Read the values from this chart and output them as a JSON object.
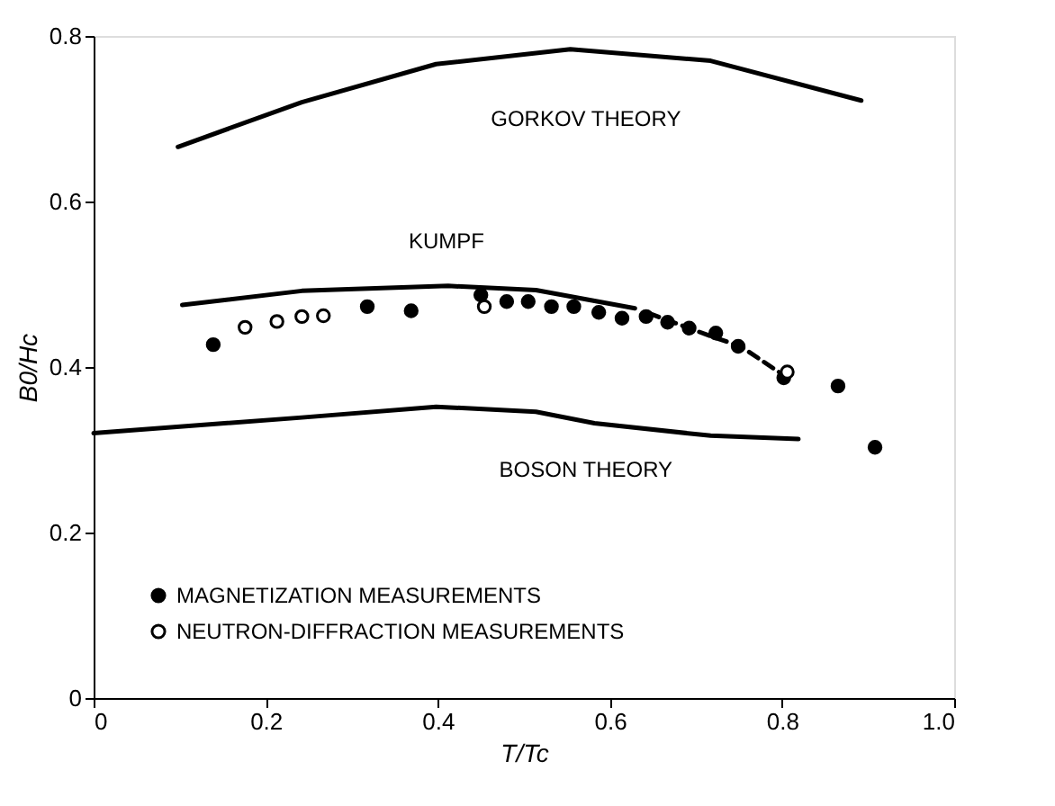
{
  "chart_data": {
    "type": "scatter",
    "xlabel": "T/Tc",
    "ylabel": "B0/Hc",
    "xlim": [
      0,
      1
    ],
    "ylim": [
      0,
      0.8
    ],
    "xticks": [
      0,
      0.2,
      0.4,
      0.6,
      0.8,
      {
        "value": 1,
        "label": "1.0"
      }
    ],
    "yticks": [
      0,
      0.2,
      0.4,
      0.6,
      0.8
    ],
    "grid": false,
    "legend": "bottom left",
    "series": [
      {
        "type": "line",
        "color": "#000000",
        "line_style": "solid",
        "x": [
          0.098,
          0.242,
          0.398,
          0.554,
          0.717,
          0.892
        ],
        "values": [
          0.666,
          0.72,
          0.766,
          0.784,
          0.77,
          0.722
        ]
      },
      {
        "type": "line",
        "color": "#000000",
        "line_style": "solid",
        "x": [
          0.103,
          0.242,
          0.412,
          0.514,
          0.629
        ],
        "values": [
          0.475,
          0.492,
          0.498,
          0.493,
          0.471
        ]
      },
      {
        "type": "line",
        "color": "#000000",
        "line_style": "dashed",
        "x": [
          0.645,
          0.718,
          0.752,
          0.799
        ],
        "values": [
          0.465,
          0.437,
          0.425,
          0.392
        ]
      },
      {
        "type": "line",
        "color": "#000000",
        "line_style": "solid",
        "x": [
          0,
          0.242,
          0.398,
          0.514,
          0.582,
          0.717,
          0.819
        ],
        "values": [
          0.32,
          0.339,
          0.352,
          0.346,
          0.332,
          0.317,
          0.313
        ]
      },
      {
        "name": "MAGNETIZATION MEASUREMENTS",
        "color": "#000000",
        "marker": "circle",
        "x": [
          0.139,
          0.318,
          0.369,
          0.45,
          0.48,
          0.505,
          0.532,
          0.558,
          0.587,
          0.614,
          0.642,
          0.667,
          0.692,
          0.723,
          0.749,
          0.802,
          0.865,
          0.908
        ],
        "values": [
          0.427,
          0.473,
          0.468,
          0.487,
          0.479,
          0.479,
          0.473,
          0.473,
          0.466,
          0.459,
          0.461,
          0.454,
          0.447,
          0.441,
          0.425,
          0.387,
          0.377,
          0.303
        ]
      },
      {
        "name": "NEUTRON-DIFFRACTION MEASUREMENTS",
        "color": "#ffffff",
        "marker": "circle",
        "x": [
          0.176,
          0.213,
          0.242,
          0.267,
          0.454,
          0.806
        ],
        "values": [
          0.448,
          0.455,
          0.461,
          0.462,
          0.473,
          0.394
        ]
      }
    ],
    "annotations": [
      "GORKOV THEORY",
      "KUMPF",
      "BOSON THEORY"
    ]
  }
}
